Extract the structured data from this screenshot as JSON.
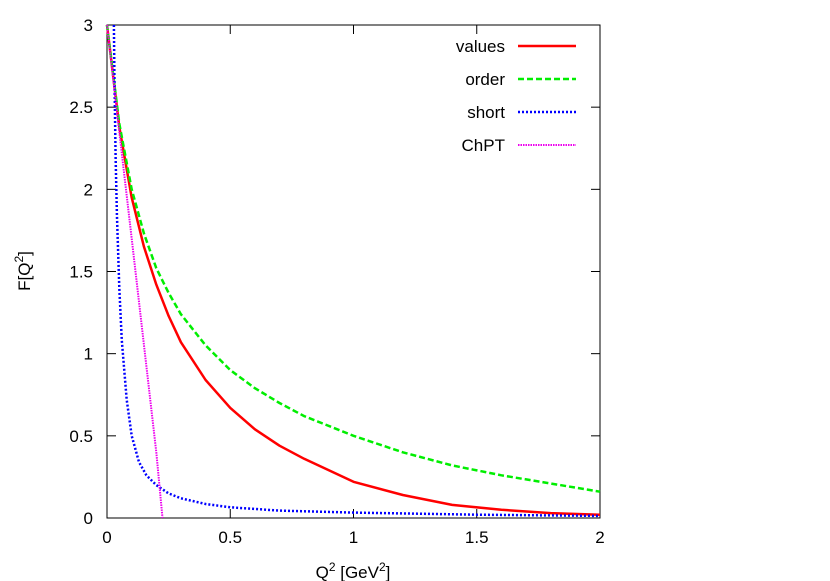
{
  "chart_data": {
    "type": "line",
    "title": "",
    "xlabel": {
      "base": "Q",
      "sup": "2",
      "unit_open": " [GeV",
      "unit_sup": "2",
      "unit_close": "]"
    },
    "ylabel": {
      "base": "F[Q",
      "sup": "2",
      "close": "]"
    },
    "xlim": [
      0,
      2
    ],
    "ylim": [
      0,
      3
    ],
    "xticks": [
      "0",
      "0.5",
      "1",
      "1.5",
      "2"
    ],
    "yticks": [
      "0",
      "0.5",
      "1",
      "1.5",
      "2",
      "2.5",
      "3"
    ],
    "grid": false,
    "legend_position": "top-right",
    "series": [
      {
        "name": "values",
        "color": "#ff0000",
        "style": "solid",
        "x": [
          0,
          0.05,
          0.1,
          0.15,
          0.2,
          0.25,
          0.3,
          0.4,
          0.5,
          0.6,
          0.7,
          0.8,
          1.0,
          1.2,
          1.4,
          1.6,
          1.8,
          2.0
        ],
        "y": [
          3.0,
          2.38,
          1.95,
          1.65,
          1.42,
          1.23,
          1.07,
          0.84,
          0.67,
          0.54,
          0.44,
          0.36,
          0.22,
          0.14,
          0.08,
          0.05,
          0.03,
          0.02
        ]
      },
      {
        "name": "order",
        "color": "#00ee00",
        "style": "dashed",
        "x": [
          0,
          0.05,
          0.1,
          0.15,
          0.2,
          0.25,
          0.3,
          0.4,
          0.5,
          0.6,
          0.7,
          0.8,
          1.0,
          1.2,
          1.4,
          1.6,
          1.8,
          2.0
        ],
        "y": [
          3.0,
          2.4,
          2.0,
          1.73,
          1.52,
          1.37,
          1.24,
          1.05,
          0.9,
          0.79,
          0.7,
          0.62,
          0.5,
          0.4,
          0.32,
          0.26,
          0.21,
          0.16
        ]
      },
      {
        "name": "short",
        "color": "#0000ff",
        "style": "dotted",
        "x": [
          0.028,
          0.03,
          0.035,
          0.04,
          0.05,
          0.06,
          0.08,
          0.1,
          0.13,
          0.16,
          0.2,
          0.25,
          0.3,
          0.4,
          0.5,
          0.7,
          1.0,
          1.5,
          2.0
        ],
        "y": [
          3.0,
          2.7,
          2.2,
          1.85,
          1.4,
          1.08,
          0.72,
          0.5,
          0.34,
          0.26,
          0.2,
          0.15,
          0.12,
          0.085,
          0.065,
          0.045,
          0.033,
          0.02,
          0.013
        ]
      },
      {
        "name": "ChPT",
        "color": "#ee00ee",
        "style": "dotted",
        "x": [
          0,
          0.05,
          0.1,
          0.15,
          0.2,
          0.225
        ],
        "y": [
          3.0,
          2.35,
          1.7,
          1.05,
          0.4,
          0.0
        ]
      }
    ]
  }
}
